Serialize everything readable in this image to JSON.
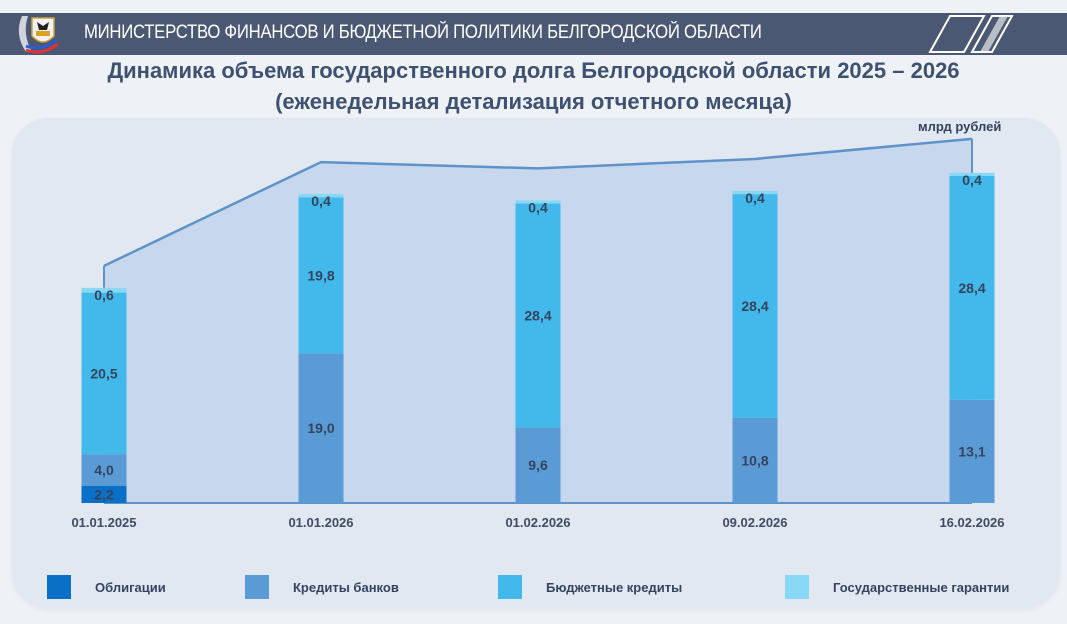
{
  "header": {
    "title": "МИНИСТЕРСТВО ФИНАНСОВ И БЮДЖЕТНОЙ ПОЛИТИКИ БЕЛГОРОДСКОЙ ОБЛАСТИ"
  },
  "chart_data": {
    "type": "bar",
    "stacked": true,
    "title": "Динамика объема государственного долга Белгородской области 2025 – 2026",
    "subtitle": "(еженедельная детализация отчетного месяца)",
    "unit": "млрд рублей",
    "categories": [
      "01.01.2025",
      "01.01.2026",
      "01.02.2026",
      "09.02.2026",
      "16.02.2026"
    ],
    "series": [
      {
        "name": "Облигации",
        "color": "#0a6fc6",
        "values": [
          2.2,
          0,
          0,
          0,
          0
        ],
        "labels": [
          "2,2",
          "",
          "",
          "",
          ""
        ]
      },
      {
        "name": "Кредиты банков",
        "color": "#5b9bd5",
        "values": [
          4.0,
          19.0,
          9.6,
          10.8,
          13.1
        ],
        "labels": [
          "4,0",
          "19,0",
          "9,6",
          "10,8",
          "13,1"
        ]
      },
      {
        "name": "Бюджетные кредиты",
        "color": "#43b9eb",
        "values": [
          20.5,
          19.8,
          28.4,
          28.4,
          28.4
        ],
        "labels": [
          "20,5",
          "19,8",
          "28,4",
          "28,4",
          "28,4"
        ]
      },
      {
        "name": "Государственные гарантии",
        "color": "#86d8f4",
        "values": [
          0.6,
          0.4,
          0.4,
          0.4,
          0.4
        ],
        "labels": [
          "0,6",
          "0,4",
          "0,4",
          "0,4",
          "0,4"
        ]
      }
    ],
    "legend_position": "bottom",
    "grid": false
  }
}
